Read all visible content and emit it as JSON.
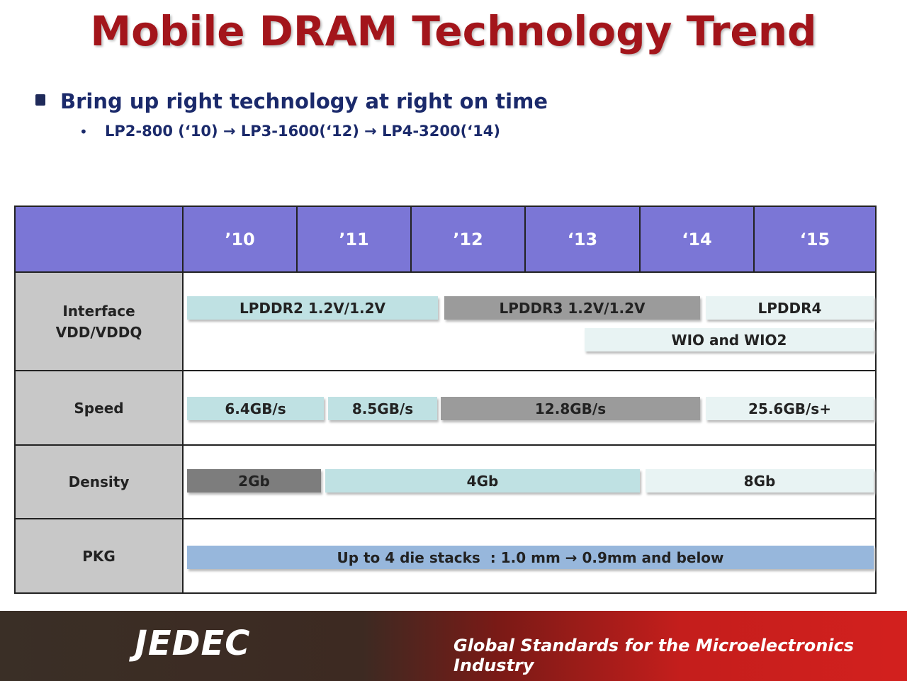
{
  "title": "Mobile DRAM Technology Trend",
  "bullet": {
    "text": "Bring up right technology at right on time",
    "sub": "LP2-800 (‘10) → LP3-1600(‘12) → LP4-3200(‘14)"
  },
  "table": {
    "years": [
      "’10",
      "’11",
      "’12",
      "‘13",
      "‘14",
      "‘15"
    ],
    "rows": [
      {
        "label": [
          "Interface",
          "VDD/VDDQ"
        ],
        "bars": [
          "LPDDR2 1.2V/1.2V",
          "LPDDR3 1.2V/1.2V",
          "LPDDR4",
          "WIO and WIO2"
        ]
      },
      {
        "label": [
          "Speed"
        ],
        "bars": [
          "6.4GB/s",
          "8.5GB/s",
          "12.8GB/s",
          "25.6GB/s+"
        ]
      },
      {
        "label": [
          "Density"
        ],
        "bars": [
          "2Gb",
          "4Gb",
          "8Gb"
        ]
      },
      {
        "label": [
          "PKG"
        ],
        "bars": [
          "Up to 4 die stacks  : 1.0 mm → 0.9mm and below"
        ]
      }
    ]
  },
  "footer": {
    "logo": "JEDEC",
    "tagline": "Global Standards for the Microelectronics Industry"
  }
}
